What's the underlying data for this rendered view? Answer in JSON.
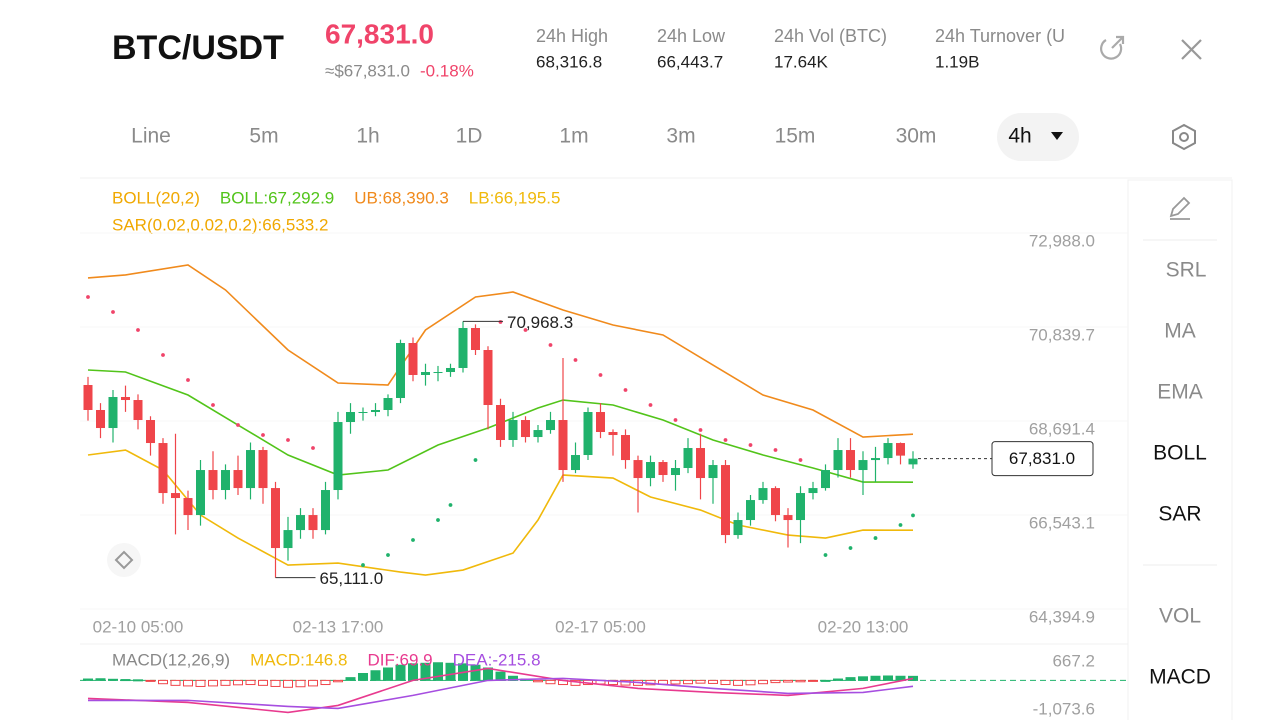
{
  "header": {
    "symbol": "BTC/USDT",
    "price": "67,831.0",
    "price_usd": "≈$67,831.0",
    "change": "-0.18%",
    "stats": [
      {
        "label": "24h  High",
        "value": "68,316.8"
      },
      {
        "label": "24h  Low",
        "value": "66,443.7"
      },
      {
        "label": "24h  Vol (BTC)",
        "value": "17.64K"
      },
      {
        "label": "24h  Turnover (U",
        "value": "1.19B"
      }
    ]
  },
  "tabs": [
    {
      "label": "Line"
    },
    {
      "label": "5m"
    },
    {
      "label": "1h"
    },
    {
      "label": "1D"
    },
    {
      "label": "1m"
    },
    {
      "label": "3m"
    },
    {
      "label": "15m"
    },
    {
      "label": "30m"
    },
    {
      "label": "4h",
      "selected": true
    }
  ],
  "sidebar": [
    {
      "label": "SRL",
      "active": false
    },
    {
      "label": "MA",
      "active": false
    },
    {
      "label": "EMA",
      "active": false
    },
    {
      "label": "BOLL",
      "active": true
    },
    {
      "label": "SAR",
      "active": true
    },
    {
      "label": "VOL",
      "active": false
    },
    {
      "label": "MACD",
      "active": true
    }
  ],
  "chart_data": [
    {
      "type": "candlestick",
      "legend": [
        {
          "label": "BOLL(20,2)",
          "color": "#f0a800"
        },
        {
          "label": "BOLL:67,292.9",
          "color": "#52c41a"
        },
        {
          "label": "UB:68,390.3",
          "color": "#f08a1c"
        },
        {
          "label": "LB:66,195.5",
          "color": "#f0b90b"
        }
      ],
      "sar_legend": {
        "label": "SAR(0.02,0.02,0.2):66,533.2",
        "color": "#f0a800"
      },
      "up_color": "#20b26c",
      "down_color": "#ef454a",
      "categories": [
        null,
        null,
        null,
        null,
        "02-10 05:00",
        null,
        null,
        null,
        null,
        null,
        null,
        null,
        null,
        null,
        null,
        null,
        null,
        null,
        null,
        null,
        "02-13 17:00",
        null,
        null,
        null,
        null,
        null,
        null,
        null,
        null,
        null,
        null,
        null,
        null,
        null,
        null,
        null,
        null,
        null,
        null,
        null,
        null,
        "02-17 05:00",
        null,
        null,
        null,
        null,
        null,
        null,
        null,
        null,
        null,
        null,
        null,
        null,
        null,
        null,
        null,
        null,
        null,
        null,
        null,
        null,
        "02-20 13:00",
        null,
        null,
        null,
        null
      ],
      "candles": {
        "open": [
          69514,
          68943,
          68531,
          69240,
          69171,
          68714,
          68188,
          67045,
          66931,
          66542,
          67571,
          67114,
          67571,
          67159,
          68028,
          67159,
          65788,
          66199,
          66542,
          66199,
          67114,
          68668,
          68897,
          68897,
          68943,
          69217,
          70474,
          69743,
          69811,
          69811,
          69903,
          70817,
          70314,
          69057,
          68257,
          68714,
          68325,
          68485,
          68714,
          67571,
          67914,
          68897,
          68440,
          68371,
          67799,
          67388,
          67754,
          67457,
          67617,
          68074,
          67388,
          67685,
          66085,
          66428,
          66885,
          67159,
          66542,
          66428,
          67045,
          67159,
          67571,
          68028,
          67571,
          67799,
          67845,
          68188,
          67700
        ],
        "high": [
          69700,
          69100,
          69400,
          69500,
          69300,
          68800,
          68300,
          68400,
          67100,
          67800,
          68000,
          67700,
          67900,
          68200,
          68100,
          67300,
          66500,
          66700,
          66700,
          67300,
          68900,
          69100,
          69000,
          69100,
          69300,
          70550,
          70600,
          70000,
          69950,
          70000,
          70968.3,
          70900,
          70400,
          69200,
          68900,
          68800,
          68600,
          68900,
          70131,
          68200,
          69000,
          69100,
          68500,
          68500,
          67900,
          67900,
          67800,
          67800,
          68300,
          68400,
          67800,
          67800,
          66600,
          67000,
          67300,
          67200,
          66700,
          67200,
          67300,
          67700,
          68300,
          68300,
          68000,
          68100,
          68300,
          68200,
          68000
        ],
        "low": [
          68700,
          68300,
          68200,
          68900,
          68500,
          67900,
          66800,
          66100,
          66200,
          66300,
          66900,
          66900,
          67000,
          66900,
          66800,
          65111,
          65500,
          66000,
          66000,
          66100,
          66900,
          68400,
          68700,
          68800,
          68800,
          69100,
          69600,
          69500,
          69600,
          69700,
          69800,
          70200,
          68500,
          68100,
          68100,
          68200,
          68200,
          68400,
          67300,
          67500,
          67800,
          68300,
          67900,
          67600,
          66600,
          67200,
          67300,
          67100,
          67500,
          66900,
          66800,
          65900,
          66000,
          66300,
          66800,
          66400,
          65800,
          65900,
          66900,
          67100,
          67400,
          67400,
          67000,
          67300,
          67700,
          67700,
          67600
        ],
        "close": [
          68943,
          68531,
          69240,
          69171,
          68714,
          68188,
          67045,
          66931,
          66542,
          67571,
          67114,
          67571,
          67159,
          68028,
          67159,
          65788,
          66199,
          66542,
          66199,
          67114,
          68668,
          68897,
          68897,
          68943,
          69217,
          70474,
          69743,
          69811,
          69811,
          69903,
          70817,
          70314,
          69057,
          68257,
          68714,
          68325,
          68485,
          68714,
          67571,
          67914,
          68897,
          68440,
          68371,
          67799,
          67388,
          67754,
          67457,
          67617,
          68074,
          67388,
          67685,
          66085,
          66428,
          66885,
          67159,
          66542,
          66428,
          67045,
          67159,
          67571,
          68028,
          67571,
          67799,
          67845,
          68188,
          67900,
          67831
        ]
      },
      "bands": [
        {
          "color": "#f08a1c",
          "x": [
            0,
            3,
            8,
            11,
            16,
            20,
            24,
            27,
            31,
            34,
            38,
            42,
            46,
            50,
            54,
            58,
            62,
            66
          ],
          "values": [
            71960,
            72029,
            72257,
            71686,
            70314,
            69560,
            69514,
            70771,
            71526,
            71640,
            71228,
            70886,
            70657,
            69971,
            69285,
            68943,
            68325,
            68390.3
          ]
        },
        {
          "color": "#52c41a",
          "x": [
            0,
            3,
            8,
            12,
            16,
            20,
            24,
            28,
            32,
            36,
            38,
            42,
            46,
            50,
            54,
            58,
            62,
            66
          ],
          "values": [
            69857,
            69811,
            69285,
            68600,
            67914,
            67457,
            67571,
            68142,
            68531,
            68988,
            69171,
            69057,
            68714,
            68257,
            67914,
            67617,
            67297,
            67292.9
          ]
        },
        {
          "color": "#f0b90b",
          "x": [
            0,
            3,
            6,
            9,
            12,
            16,
            20,
            25,
            27,
            30,
            34,
            36,
            38,
            42,
            45,
            49,
            52,
            56,
            59,
            62,
            66
          ],
          "values": [
            67914,
            68028,
            67571,
            66542,
            66016,
            65399,
            65445,
            65239,
            65171,
            65285,
            65673,
            66428,
            67457,
            67388,
            66954,
            66656,
            66314,
            66085,
            66016,
            66199,
            66195.5
          ]
        }
      ],
      "sar": {
        "above_color": "#f0446a",
        "below_color": "#20b26c",
        "x": [
          0,
          2,
          4,
          6,
          8,
          10,
          12,
          14,
          16,
          18,
          20,
          22,
          24,
          26,
          28,
          29,
          31,
          33,
          35,
          37,
          39,
          41,
          43,
          45,
          47,
          49,
          51,
          53,
          55,
          57,
          59,
          61,
          63,
          65,
          66
        ],
        "values": [
          71526,
          71183,
          70771,
          70200,
          69628,
          69057,
          68600,
          68371,
          68257,
          68074,
          67914,
          65399,
          65628,
          65971,
          66428,
          66771,
          67799,
          70954,
          70771,
          70428,
          70085,
          69743,
          69400,
          69057,
          68714,
          68485,
          68257,
          68142,
          68028,
          67799,
          65628,
          65788,
          66016,
          66314,
          66533.2
        ]
      },
      "annotations": [
        {
          "value": 70968.3,
          "label": "70,968.3",
          "at": "high"
        },
        {
          "value": 65111,
          "label": "65,111.0",
          "at": "low"
        }
      ],
      "last_price": {
        "value": 67831,
        "label": "67,831.0"
      },
      "ylim": [
        64394.9,
        72988.0
      ],
      "yticks": [
        {
          "value": 72988.0,
          "label": "72,988.0"
        },
        {
          "value": 70839.7,
          "label": "70,839.7"
        },
        {
          "value": 68691.4,
          "label": "68,691.4"
        },
        {
          "value": 66543.1,
          "label": "66,543.1"
        },
        {
          "value": 64394.9,
          "label": "64,394.9"
        }
      ],
      "grid": true
    },
    {
      "type": "macd",
      "legend": [
        {
          "label": "MACD(12,26,9)",
          "color": "#888888"
        },
        {
          "label": "MACD:146.8",
          "color": "#f0b90b"
        },
        {
          "label": "DIF:69.9",
          "color": "#e83a8f"
        },
        {
          "label": "DEA:-215.8",
          "color": "#a64ee0"
        }
      ],
      "up_color": "#20b26c",
      "down_color": "#ef454a",
      "values": [
        50,
        60,
        40,
        30,
        20,
        -30,
        -120,
        -180,
        -200,
        -220,
        -200,
        -180,
        -160,
        -150,
        -180,
        -220,
        -250,
        -230,
        -200,
        -150,
        -50,
        100,
        250,
        350,
        450,
        550,
        600,
        620,
        640,
        620,
        600,
        550,
        450,
        300,
        150,
        50,
        -50,
        -120,
        -150,
        -180,
        -150,
        -130,
        -150,
        -170,
        -180,
        -160,
        -140,
        -130,
        -120,
        -100,
        -110,
        -150,
        -180,
        -160,
        -120,
        -80,
        -60,
        -50,
        -30,
        0,
        50,
        100,
        130,
        150,
        160,
        150,
        146.8
      ],
      "lines": [
        {
          "color": "#e83a8f",
          "x": [
            0,
            8,
            16,
            20,
            26,
            32,
            38,
            44,
            50,
            56,
            62,
            66
          ],
          "values": [
            -653,
            -798,
            -1161,
            -907,
            0,
            435,
            0,
            -290,
            -435,
            -544,
            -290,
            69.9
          ]
        },
        {
          "color": "#a64ee0",
          "x": [
            0,
            8,
            16,
            20,
            26,
            32,
            38,
            44,
            50,
            56,
            62,
            66
          ],
          "values": [
            -725,
            -725,
            -943,
            -1016,
            -544,
            0,
            73,
            -73,
            -290,
            -472,
            -435,
            -215.8
          ]
        }
      ],
      "ylim": [
        -1073.6,
        667.2
      ],
      "yticks": [
        {
          "value": 667.2,
          "label": "667.2"
        },
        {
          "value": -1073.6,
          "label": "-1,073.6"
        }
      ]
    }
  ]
}
